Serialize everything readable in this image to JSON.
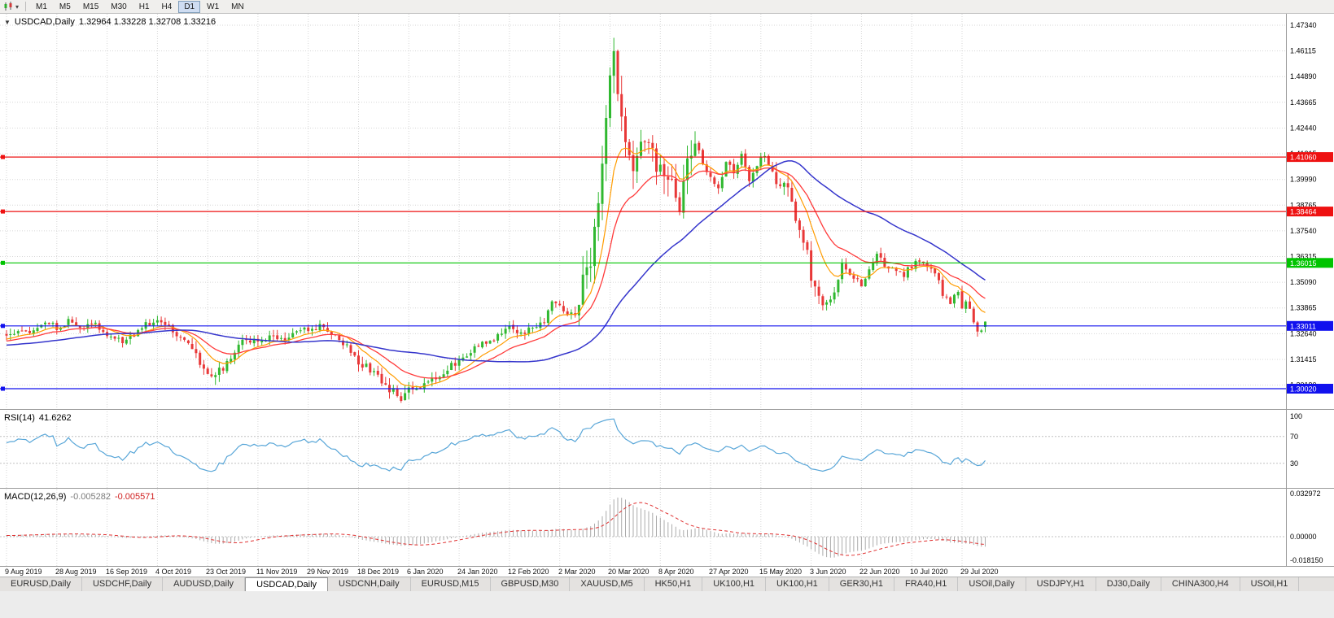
{
  "toolbar": {
    "periods": [
      "M1",
      "M5",
      "M15",
      "M30",
      "H1",
      "H4",
      "D1",
      "W1",
      "MN"
    ],
    "active_period": "D1"
  },
  "chart": {
    "header_symbol": "USDCAD,Daily",
    "header_ohlc": "1.32964 1.33228 1.32708 1.33216",
    "price_axis_ticks": [
      "1.47340",
      "1.46115",
      "1.44890",
      "1.43665",
      "1.42440",
      "1.41215",
      "1.39990",
      "1.38765",
      "1.37540",
      "1.36315",
      "1.35090",
      "1.33865",
      "1.32640",
      "1.31415",
      "1.30190"
    ],
    "hlines": [
      {
        "price": 1.4106,
        "label": "1.41060",
        "color": "#ee1111"
      },
      {
        "price": 1.38464,
        "label": "1.38464",
        "color": "#ee1111"
      },
      {
        "price": 1.36015,
        "label": "1.36015",
        "color": "#00c400"
      },
      {
        "price": 1.33011,
        "label": "1.33011",
        "color": "#1111ee"
      },
      {
        "price": 1.3002,
        "label": "1.30020",
        "color": "#1111ee"
      }
    ],
    "dates": [
      "9 Aug 2019",
      "28 Aug 2019",
      "16 Sep 2019",
      "4 Oct 2019",
      "23 Oct 2019",
      "11 Nov 2019",
      "29 Nov 2019",
      "18 Dec 2019",
      "6 Jan 2020",
      "24 Jan 2020",
      "12 Feb 2020",
      "2 Mar 2020",
      "20 Mar 2020",
      "8 Apr 2020",
      "27 Apr 2020",
      "15 May 2020",
      "3 Jun 2020",
      "22 Jun 2020",
      "10 Jul 2020",
      "29 Jul 2020"
    ]
  },
  "rsi": {
    "header": "RSI(14)",
    "value": "41.6262",
    "ticks": [
      {
        "v": 100,
        "label": "100"
      },
      {
        "v": 70,
        "label": "70"
      },
      {
        "v": 30,
        "label": "30"
      }
    ],
    "levels": [
      70,
      30
    ]
  },
  "macd": {
    "header": "MACD(12,26,9)",
    "value": "-0.005282",
    "signal": "-0.005571",
    "ticks": [
      {
        "v": 0.032972,
        "label": "0.032972"
      },
      {
        "v": 0,
        "label": "0.00000"
      },
      {
        "v": -0.01815,
        "label": "-0.018150"
      }
    ]
  },
  "tabs": {
    "active_index": 3,
    "items": [
      "EURUSD,Daily",
      "USDCHF,Daily",
      "AUDUSD,Daily",
      "USDCAD,Daily",
      "USDCNH,Daily",
      "EURUSD,M15",
      "GBPUSD,M30",
      "XAUUSD,M5",
      "HK50,H1",
      "UK100,H1",
      "UK100,H1",
      "GER30,H1",
      "FRA40,H1",
      "USOil,Daily",
      "USDJPY,H1",
      "DJ30,Daily",
      "CHINA300,H4",
      "USOil,H1"
    ]
  },
  "chart_data": {
    "type": "candlestick",
    "symbol": "USDCAD",
    "timeframe": "Daily",
    "bars": 254,
    "warmup_start": -60,
    "seed": 7,
    "date_step": 13,
    "price_range_drawn": [
      1.2905,
      1.478825
    ],
    "last_candle": {
      "o": 1.32964,
      "h": 1.33228,
      "l": 1.32708,
      "c": 1.33216
    },
    "spike_index": 157,
    "spike_high": 1.4674,
    "noise": {
      "body": 0.0016,
      "wick": 0.0028
    },
    "volatility_zones": [
      {
        "from": 48,
        "to": 56,
        "mult": 1.4
      },
      {
        "from": 91,
        "to": 104,
        "mult": 1.3
      },
      {
        "from": 147,
        "to": 178,
        "mult": 3.2
      },
      {
        "from": 199,
        "to": 213,
        "mult": 1.8
      }
    ],
    "close_path_anchors": [
      [
        -60,
        1.315
      ],
      [
        -45,
        1.3205
      ],
      [
        -30,
        1.317
      ],
      [
        -15,
        1.3235
      ],
      [
        -5,
        1.3215
      ],
      [
        0,
        1.3255
      ],
      [
        3,
        1.329
      ],
      [
        6,
        1.327
      ],
      [
        10,
        1.331
      ],
      [
        13,
        1.3295
      ],
      [
        16,
        1.332
      ],
      [
        19,
        1.329
      ],
      [
        23,
        1.331
      ],
      [
        26,
        1.3245
      ],
      [
        30,
        1.3225
      ],
      [
        33,
        1.326
      ],
      [
        36,
        1.3305
      ],
      [
        39,
        1.332
      ],
      [
        42,
        1.329
      ],
      [
        45,
        1.3255
      ],
      [
        48,
        1.318
      ],
      [
        51,
        1.309
      ],
      [
        53,
        1.3065
      ],
      [
        55,
        1.3085
      ],
      [
        58,
        1.316
      ],
      [
        61,
        1.322
      ],
      [
        65,
        1.3235
      ],
      [
        68,
        1.325
      ],
      [
        71,
        1.323
      ],
      [
        74,
        1.326
      ],
      [
        78,
        1.3285
      ],
      [
        81,
        1.33
      ],
      [
        84,
        1.3255
      ],
      [
        87,
        1.322
      ],
      [
        91,
        1.3135
      ],
      [
        94,
        1.309
      ],
      [
        97,
        1.304
      ],
      [
        100,
        1.2985
      ],
      [
        102,
        1.296
      ],
      [
        104,
        1.299
      ],
      [
        107,
        1.302
      ],
      [
        110,
        1.305
      ],
      [
        113,
        1.3085
      ],
      [
        117,
        1.314
      ],
      [
        120,
        1.318
      ],
      [
        123,
        1.3215
      ],
      [
        126,
        1.3245
      ],
      [
        130,
        1.329
      ],
      [
        133,
        1.326
      ],
      [
        136,
        1.329
      ],
      [
        139,
        1.332
      ],
      [
        141,
        1.342
      ],
      [
        143,
        1.3385
      ],
      [
        145,
        1.334
      ],
      [
        147,
        1.339
      ],
      [
        149,
        1.35
      ],
      [
        151,
        1.363
      ],
      [
        153,
        1.387
      ],
      [
        155,
        1.425
      ],
      [
        156,
        1.45
      ],
      [
        157,
        1.46
      ],
      [
        158,
        1.444
      ],
      [
        160,
        1.415
      ],
      [
        162,
        1.4
      ],
      [
        164,
        1.423
      ],
      [
        166,
        1.417
      ],
      [
        169,
        1.403
      ],
      [
        171,
        1.399
      ],
      [
        174,
        1.389
      ],
      [
        176,
        1.409
      ],
      [
        178,
        1.419
      ],
      [
        180,
        1.408
      ],
      [
        182,
        1.401
      ],
      [
        184,
        1.395
      ],
      [
        186,
        1.407
      ],
      [
        188,
        1.404
      ],
      [
        190,
        1.412
      ],
      [
        192,
        1.399
      ],
      [
        195,
        1.411
      ],
      [
        197,
        1.408
      ],
      [
        199,
        1.397
      ],
      [
        201,
        1.4
      ],
      [
        203,
        1.388
      ],
      [
        205,
        1.377
      ],
      [
        207,
        1.366
      ],
      [
        208,
        1.352
      ],
      [
        210,
        1.343
      ],
      [
        212,
        1.339
      ],
      [
        214,
        1.345
      ],
      [
        216,
        1.359
      ],
      [
        218,
        1.3545
      ],
      [
        221,
        1.3505
      ],
      [
        223,
        1.357
      ],
      [
        225,
        1.365
      ],
      [
        227,
        1.358
      ],
      [
        230,
        1.3572
      ],
      [
        232,
        1.3545
      ],
      [
        234,
        1.359
      ],
      [
        236,
        1.3615
      ],
      [
        238,
        1.3575
      ],
      [
        240,
        1.356
      ],
      [
        242,
        1.345
      ],
      [
        244,
        1.3415
      ],
      [
        246,
        1.3455
      ],
      [
        247,
        1.339
      ],
      [
        248,
        1.342
      ],
      [
        249,
        1.3395
      ],
      [
        250,
        1.333
      ],
      [
        251,
        1.3265
      ],
      [
        252,
        1.329
      ],
      [
        253,
        1.3322
      ]
    ],
    "indicators": {
      "ma_fast_period": 10,
      "ma_mid_period": 21,
      "ma_slow_period": 50,
      "rsi_period": 14,
      "macd_periods": [
        12,
        26,
        9
      ]
    },
    "colors": {
      "bull": "#30b830",
      "bear": "#e83838",
      "ma_fast": "#ff9c00",
      "ma_mid": "#ff3b3b",
      "ma_slow": "#3535cc",
      "rsi_line": "#58a6d8",
      "rsi_level": "#c0c0c0",
      "macd_hist": "#ababab",
      "macd_signal": "#e03030",
      "grid": "#d6d6d6",
      "separator": "#9a9a9a"
    }
  }
}
